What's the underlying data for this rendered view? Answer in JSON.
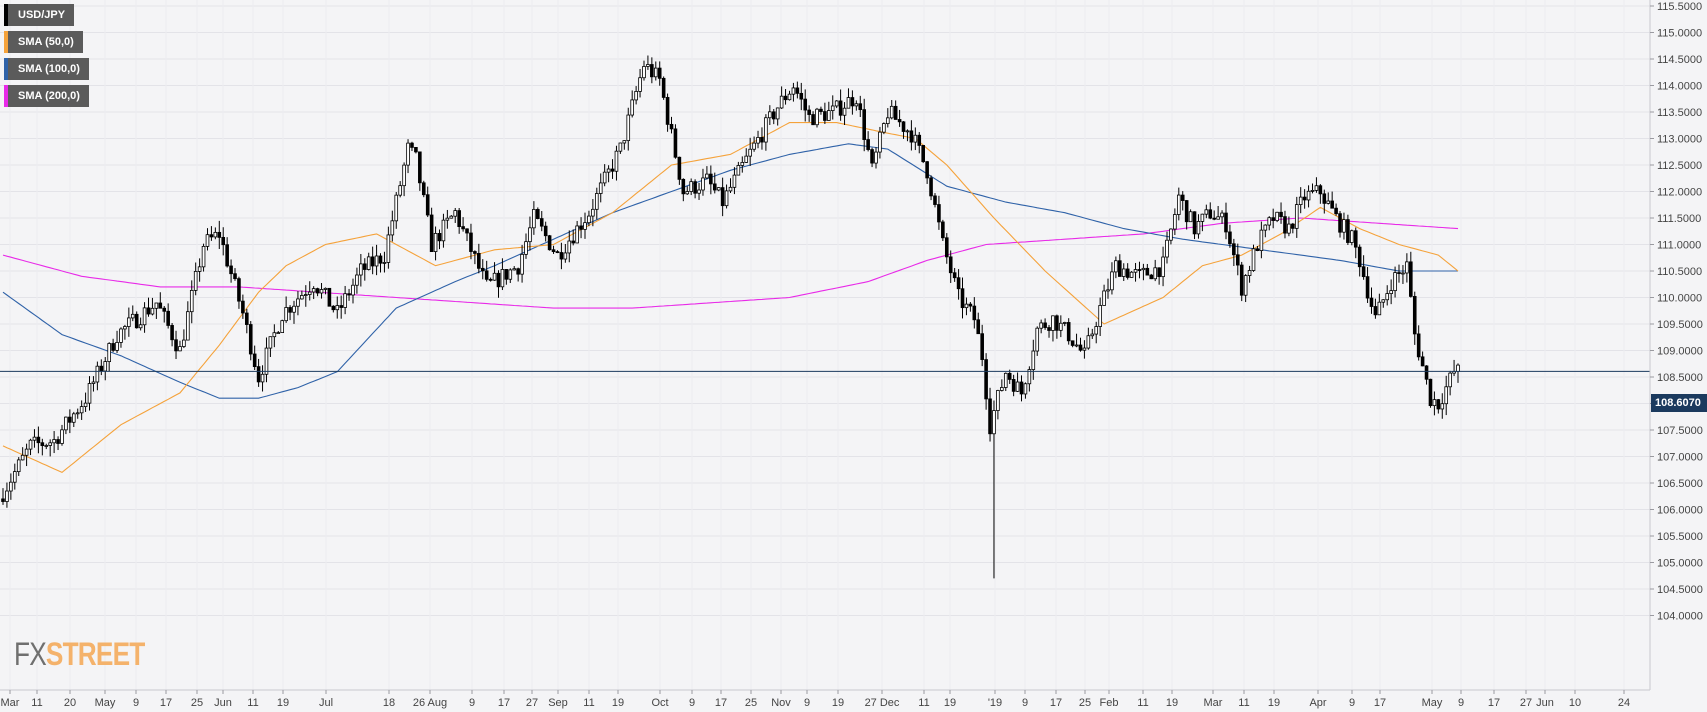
{
  "legend": [
    {
      "label": "USD/JPY",
      "color": "#000000"
    },
    {
      "label": "SMA (50,0)",
      "color": "#f5a23a"
    },
    {
      "label": "SMA (100,0)",
      "color": "#2f62a8"
    },
    {
      "label": "SMA (200,0)",
      "color": "#e82ae8"
    }
  ],
  "watermark": {
    "part1": "FX",
    "part2": "STREET"
  },
  "current_price_label": "108.6070",
  "chart_data": {
    "type": "candlestick",
    "title": "",
    "xlabel": "",
    "ylabel": "",
    "ylim": [
      103.8,
      115.6
    ],
    "y_ticks": [
      "115.5000",
      "115.0000",
      "114.5000",
      "114.0000",
      "113.5000",
      "113.0000",
      "112.5000",
      "112.0000",
      "111.5000",
      "111.0000",
      "110.5000",
      "110.0000",
      "109.5000",
      "109.0000",
      "108.5000",
      "108.0000",
      "107.5000",
      "107.0000",
      "106.5000",
      "106.0000",
      "105.5000",
      "105.0000",
      "104.5000",
      "104.0000"
    ],
    "x_ticks": [
      "Mar",
      "11",
      "20",
      "May",
      "9",
      "17",
      "25",
      "Jun",
      "11",
      "19",
      "Jul",
      "18",
      "26 Aug",
      "9",
      "17",
      "27",
      "Sep",
      "11",
      "19",
      "Oct",
      "9",
      "17",
      "25",
      "Nov",
      "9",
      "19",
      "27 Dec",
      "11",
      "19",
      "'19",
      "9",
      "17",
      "25",
      "Feb",
      "11",
      "19",
      "Mar",
      "11",
      "19",
      "Apr",
      "9",
      "17",
      "May",
      "9",
      "17",
      "27",
      "Jun",
      "10",
      "24"
    ],
    "current_price": 108.607,
    "price_keypoints": [
      [
        0,
        106.2
      ],
      [
        8,
        107.2
      ],
      [
        14,
        107.3
      ],
      [
        22,
        108.1
      ],
      [
        30,
        109.3
      ],
      [
        40,
        109.9
      ],
      [
        46,
        109.0
      ],
      [
        52,
        111.0
      ],
      [
        56,
        111.2
      ],
      [
        62,
        109.7
      ],
      [
        66,
        108.5
      ],
      [
        72,
        109.7
      ],
      [
        80,
        110.3
      ],
      [
        86,
        109.7
      ],
      [
        92,
        110.5
      ],
      [
        98,
        110.8
      ],
      [
        104,
        112.8
      ],
      [
        106,
        112.6
      ],
      [
        110,
        111.0
      ],
      [
        116,
        111.6
      ],
      [
        124,
        110.2
      ],
      [
        132,
        110.6
      ],
      [
        136,
        111.5
      ],
      [
        142,
        110.8
      ],
      [
        150,
        111.6
      ],
      [
        158,
        112.8
      ],
      [
        164,
        114.4
      ],
      [
        168,
        114.1
      ],
      [
        174,
        112.0
      ],
      [
        180,
        112.2
      ],
      [
        184,
        111.8
      ],
      [
        190,
        112.6
      ],
      [
        198,
        113.6
      ],
      [
        202,
        114.0
      ],
      [
        206,
        113.4
      ],
      [
        212,
        113.5
      ],
      [
        218,
        113.8
      ],
      [
        222,
        112.4
      ],
      [
        226,
        113.5
      ],
      [
        232,
        113.1
      ],
      [
        236,
        112.4
      ],
      [
        240,
        111.0
      ],
      [
        244,
        110.0
      ],
      [
        248,
        109.6
      ],
      [
        250,
        108.9
      ],
      [
        252,
        107.6
      ],
      [
        256,
        108.6
      ],
      [
        260,
        108.2
      ],
      [
        264,
        109.4
      ],
      [
        268,
        109.6
      ],
      [
        272,
        109.3
      ],
      [
        276,
        108.9
      ],
      [
        280,
        109.8
      ],
      [
        284,
        110.6
      ],
      [
        290,
        110.4
      ],
      [
        296,
        110.6
      ],
      [
        300,
        111.9
      ],
      [
        304,
        111.3
      ],
      [
        308,
        111.6
      ],
      [
        312,
        111.4
      ],
      [
        316,
        110.2
      ],
      [
        320,
        111.0
      ],
      [
        324,
        111.5
      ],
      [
        328,
        111.3
      ],
      [
        332,
        111.9
      ],
      [
        336,
        112.0
      ],
      [
        340,
        111.5
      ],
      [
        344,
        111.1
      ],
      [
        346,
        110.7
      ],
      [
        350,
        109.6
      ],
      [
        354,
        110.3
      ],
      [
        358,
        110.6
      ],
      [
        360,
        109.3
      ],
      [
        364,
        108.1
      ],
      [
        366,
        108.0
      ],
      [
        370,
        108.6
      ]
    ],
    "candle_count": 371,
    "notable_lows": [
      [
        252,
        104.7
      ]
    ],
    "sma50_keypoints": [
      [
        0,
        107.2
      ],
      [
        15,
        106.7
      ],
      [
        30,
        107.6
      ],
      [
        45,
        108.2
      ],
      [
        55,
        109.1
      ],
      [
        65,
        110.1
      ],
      [
        72,
        110.6
      ],
      [
        82,
        111.0
      ],
      [
        95,
        111.2
      ],
      [
        110,
        110.6
      ],
      [
        125,
        110.9
      ],
      [
        140,
        111.0
      ],
      [
        155,
        111.6
      ],
      [
        170,
        112.5
      ],
      [
        185,
        112.7
      ],
      [
        200,
        113.3
      ],
      [
        212,
        113.3
      ],
      [
        225,
        113.1
      ],
      [
        232,
        113.0
      ],
      [
        240,
        112.5
      ],
      [
        252,
        111.5
      ],
      [
        265,
        110.5
      ],
      [
        280,
        109.5
      ],
      [
        295,
        110.0
      ],
      [
        305,
        110.6
      ],
      [
        315,
        110.8
      ],
      [
        325,
        111.2
      ],
      [
        335,
        111.7
      ],
      [
        345,
        111.3
      ],
      [
        355,
        111.0
      ],
      [
        365,
        110.8
      ],
      [
        370,
        110.5
      ]
    ],
    "sma100_keypoints": [
      [
        0,
        110.1
      ],
      [
        15,
        109.3
      ],
      [
        30,
        108.9
      ],
      [
        45,
        108.4
      ],
      [
        55,
        108.1
      ],
      [
        65,
        108.1
      ],
      [
        75,
        108.3
      ],
      [
        85,
        108.6
      ],
      [
        100,
        109.8
      ],
      [
        115,
        110.3
      ],
      [
        125,
        110.6
      ],
      [
        140,
        111.1
      ],
      [
        155,
        111.6
      ],
      [
        170,
        112.0
      ],
      [
        185,
        112.4
      ],
      [
        200,
        112.7
      ],
      [
        215,
        112.9
      ],
      [
        225,
        112.8
      ],
      [
        240,
        112.1
      ],
      [
        255,
        111.8
      ],
      [
        270,
        111.6
      ],
      [
        285,
        111.3
      ],
      [
        300,
        111.1
      ],
      [
        320,
        110.9
      ],
      [
        340,
        110.7
      ],
      [
        355,
        110.5
      ],
      [
        370,
        110.5
      ]
    ],
    "sma200_keypoints": [
      [
        0,
        110.8
      ],
      [
        20,
        110.4
      ],
      [
        40,
        110.2
      ],
      [
        60,
        110.2
      ],
      [
        80,
        110.1
      ],
      [
        100,
        110.0
      ],
      [
        120,
        109.9
      ],
      [
        140,
        109.8
      ],
      [
        160,
        109.8
      ],
      [
        180,
        109.9
      ],
      [
        200,
        110.0
      ],
      [
        220,
        110.3
      ],
      [
        235,
        110.7
      ],
      [
        250,
        111.0
      ],
      [
        270,
        111.1
      ],
      [
        290,
        111.2
      ],
      [
        310,
        111.4
      ],
      [
        330,
        111.5
      ],
      [
        350,
        111.4
      ],
      [
        370,
        111.3
      ]
    ],
    "grid": true,
    "price_axis_position": "right"
  }
}
